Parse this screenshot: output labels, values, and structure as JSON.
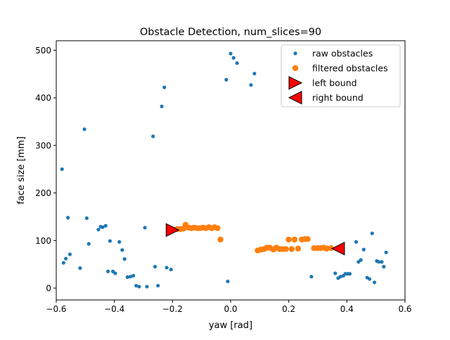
{
  "chart_data": {
    "type": "scatter",
    "title": "Obstacle Detection, num_slices=90",
    "xlabel": "yaw [rad]",
    "ylabel": "face size [mm]",
    "xlim": [
      -0.6,
      0.6
    ],
    "ylim": [
      -25,
      520
    ],
    "xticks": [
      -0.6,
      -0.4,
      -0.2,
      0.0,
      0.2,
      0.4,
      0.6
    ],
    "xtick_labels": [
      "−0.6",
      "−0.4",
      "−0.2",
      "0.0",
      "0.2",
      "0.4",
      "0.6"
    ],
    "yticks": [
      0,
      100,
      200,
      300,
      400,
      500
    ],
    "ytick_labels": [
      "0",
      "100",
      "200",
      "300",
      "400",
      "500"
    ],
    "grid": false,
    "legend_position": "top-right",
    "series": [
      {
        "name": "raw obstacles",
        "marker": "dot",
        "color": "#1f77b4",
        "points": [
          [
            -0.58,
            250
          ],
          [
            -0.575,
            53
          ],
          [
            -0.567,
            62
          ],
          [
            -0.56,
            148
          ],
          [
            -0.553,
            71
          ],
          [
            -0.518,
            42
          ],
          [
            -0.503,
            334
          ],
          [
            -0.495,
            147
          ],
          [
            -0.488,
            93
          ],
          [
            -0.455,
            123
          ],
          [
            -0.447,
            129
          ],
          [
            -0.44,
            128
          ],
          [
            -0.43,
            131
          ],
          [
            -0.422,
            35
          ],
          [
            -0.415,
            99
          ],
          [
            -0.405,
            35
          ],
          [
            -0.397,
            31
          ],
          [
            -0.383,
            97
          ],
          [
            -0.373,
            80
          ],
          [
            -0.365,
            61
          ],
          [
            -0.355,
            23
          ],
          [
            -0.345,
            24
          ],
          [
            -0.335,
            26
          ],
          [
            -0.325,
            5
          ],
          [
            -0.315,
            3
          ],
          [
            -0.295,
            127
          ],
          [
            -0.288,
            3
          ],
          [
            -0.267,
            319
          ],
          [
            -0.26,
            45
          ],
          [
            -0.25,
            5
          ],
          [
            -0.237,
            382
          ],
          [
            -0.228,
            422
          ],
          [
            -0.22,
            43
          ],
          [
            -0.205,
            39
          ],
          [
            -0.015,
            438
          ],
          [
            -0.01,
            14
          ],
          [
            0.0,
            493
          ],
          [
            0.01,
            484
          ],
          [
            0.022,
            473
          ],
          [
            0.07,
            427
          ],
          [
            0.082,
            451
          ],
          [
            0.278,
            24
          ],
          [
            0.36,
            31
          ],
          [
            0.37,
            21
          ],
          [
            0.378,
            24
          ],
          [
            0.388,
            26
          ],
          [
            0.395,
            30
          ],
          [
            0.403,
            30
          ],
          [
            0.41,
            30
          ],
          [
            0.432,
            97
          ],
          [
            0.44,
            55
          ],
          [
            0.448,
            59
          ],
          [
            0.458,
            81
          ],
          [
            0.47,
            22
          ],
          [
            0.478,
            19
          ],
          [
            0.487,
            115
          ],
          [
            0.495,
            12
          ],
          [
            0.503,
            57
          ],
          [
            0.51,
            55
          ],
          [
            0.52,
            55
          ],
          [
            0.527,
            45
          ],
          [
            0.535,
            75
          ]
        ]
      },
      {
        "name": "filtered obstacles",
        "marker": "circle",
        "color": "#ff7f0e",
        "points": [
          [
            -0.205,
            122
          ],
          [
            -0.195,
            123
          ],
          [
            -0.183,
            124
          ],
          [
            -0.172,
            124
          ],
          [
            -0.162,
            125
          ],
          [
            -0.155,
            133
          ],
          [
            -0.145,
            127
          ],
          [
            -0.135,
            126
          ],
          [
            -0.125,
            127
          ],
          [
            -0.115,
            126
          ],
          [
            -0.105,
            126
          ],
          [
            -0.095,
            127
          ],
          [
            -0.085,
            126
          ],
          [
            -0.075,
            128
          ],
          [
            -0.065,
            126
          ],
          [
            -0.055,
            128
          ],
          [
            -0.045,
            126
          ],
          [
            -0.035,
            102
          ],
          [
            0.093,
            79
          ],
          [
            0.105,
            81
          ],
          [
            0.115,
            82
          ],
          [
            0.125,
            85
          ],
          [
            0.135,
            85
          ],
          [
            0.147,
            81
          ],
          [
            0.157,
            85
          ],
          [
            0.168,
            82
          ],
          [
            0.178,
            82
          ],
          [
            0.19,
            82
          ],
          [
            0.2,
            102
          ],
          [
            0.21,
            82
          ],
          [
            0.22,
            102
          ],
          [
            0.232,
            83
          ],
          [
            0.245,
            102
          ],
          [
            0.255,
            103
          ],
          [
            0.265,
            103
          ],
          [
            0.287,
            84
          ],
          [
            0.3,
            84
          ],
          [
            0.31,
            84
          ],
          [
            0.32,
            85
          ],
          [
            0.33,
            83
          ],
          [
            0.345,
            84
          ]
        ]
      },
      {
        "name": "left bound",
        "marker": "triangle-right",
        "color": "#ff0000",
        "points": [
          [
            -0.2,
            122
          ]
        ]
      },
      {
        "name": "right bound",
        "marker": "triangle-left",
        "color": "#ff0000",
        "points": [
          [
            0.37,
            83
          ]
        ]
      }
    ]
  }
}
